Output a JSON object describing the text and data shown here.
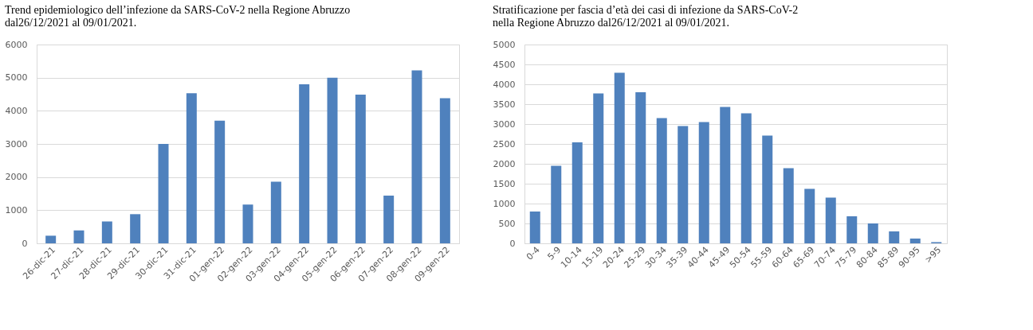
{
  "chart_data": [
    {
      "type": "bar",
      "title": "Trend epidemiologico dell’infezione da SARS-CoV-2 nella Regione Abruzzo dal26/12/2021 al 09/01/2021.",
      "categories": [
        "26-dic-21",
        "27-dic-21",
        "28-dic-21",
        "29-dic-21",
        "30-dic-21",
        "31-dic-21",
        "01-gen-22",
        "02-gen-22",
        "03-gen-22",
        "04-gen-22",
        "05-gen-22",
        "06-gen-22",
        "07-gen-22",
        "08-gen-22",
        "09-gen-22"
      ],
      "values": [
        230,
        390,
        660,
        880,
        3000,
        4530,
        3700,
        1170,
        1860,
        4800,
        5000,
        4490,
        1440,
        5220,
        4380
      ],
      "color": "#4f81bd",
      "ylim": [
        0,
        6000
      ],
      "yticks": [
        0,
        1000,
        2000,
        3000,
        4000,
        5000,
        6000
      ],
      "grid": "y"
    },
    {
      "type": "bar",
      "title": "Stratificazione per fascia d’età dei casi di infezione da SARS-CoV-2 nella Regione Abruzzo dal26/12/2021 al 09/01/2021.",
      "categories": [
        "0-4",
        "5-9",
        "10-14",
        "15-19",
        "20-24",
        "25-29",
        "30-34",
        "35-39",
        "40-44",
        "45-49",
        "50-54",
        "55-59",
        "60-64",
        "65-69",
        "70-74",
        "75-79",
        "80-84",
        "85-89",
        "90-95",
        ">95"
      ],
      "values": [
        800,
        1950,
        2540,
        3770,
        4290,
        3800,
        3150,
        2950,
        3050,
        3430,
        3270,
        2710,
        1890,
        1370,
        1150,
        680,
        500,
        300,
        120,
        30
      ],
      "color": "#4f81bd",
      "ylim": [
        0,
        5000
      ],
      "yticks": [
        0,
        500,
        1000,
        1500,
        2000,
        2500,
        3000,
        3500,
        4000,
        4500,
        5000
      ],
      "grid": "y"
    }
  ]
}
